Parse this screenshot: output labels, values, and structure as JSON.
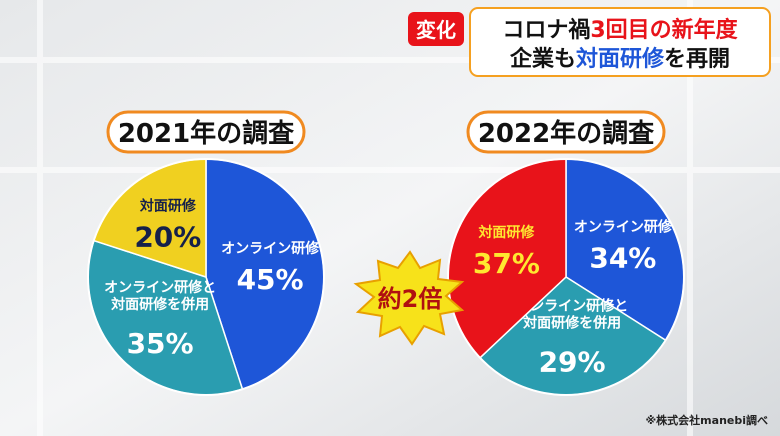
{
  "header": {
    "badge": "変化",
    "line1": [
      "コロナ禍",
      "3回目の新年度"
    ],
    "line2": [
      "企業も",
      "対面研修",
      "を再開"
    ]
  },
  "chart_data": [
    {
      "type": "pie",
      "title": "2021年の調査",
      "categories": [
        "オンライン研修",
        "オンライン研修と\n対面研修を併用",
        "対面研修"
      ],
      "values": [
        45,
        35,
        20
      ],
      "value_labels": [
        "45%",
        "35%",
        "20%"
      ],
      "colors": [
        "#1e56d8",
        "#2a9db0",
        "#f0d020"
      ],
      "label_colors": [
        "#ffffff",
        "#ffffff",
        "#15204a"
      ]
    },
    {
      "type": "pie",
      "title": "2022年の調査",
      "categories": [
        "オンライン研修",
        "オンライン研修と\n対面研修を併用",
        "対面研修"
      ],
      "values": [
        34,
        29,
        37
      ],
      "value_labels": [
        "34%",
        "29%",
        "37%"
      ],
      "colors": [
        "#1e56d8",
        "#2a9db0",
        "#e8131a"
      ],
      "label_colors": [
        "#ffffff",
        "#ffffff",
        "#ffe830"
      ]
    }
  ],
  "annotation": "約2倍",
  "source": "※株式会社manebi調べ"
}
